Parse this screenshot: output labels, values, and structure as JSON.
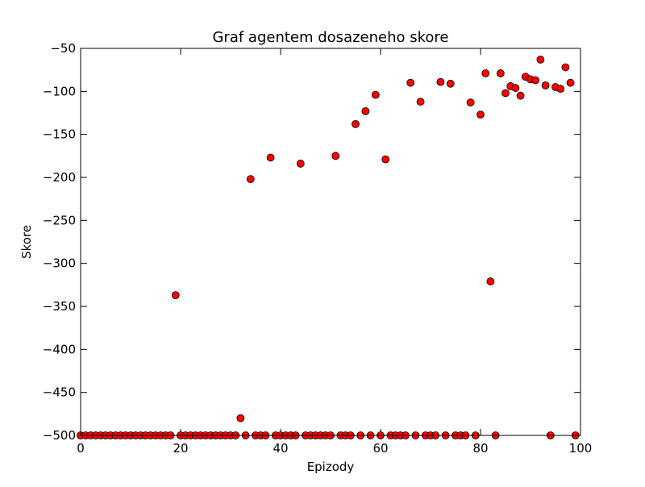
{
  "chart_data": {
    "type": "scatter",
    "title": "Graf agentem dosazeneho skore",
    "xlabel": "Epizody",
    "ylabel": "Skore",
    "xlim": [
      0,
      100
    ],
    "ylim": [
      -500,
      -50
    ],
    "x_ticks": [
      0,
      20,
      40,
      60,
      80,
      100
    ],
    "y_ticks": [
      -500,
      -450,
      -400,
      -350,
      -300,
      -250,
      -200,
      -150,
      -100,
      -50
    ],
    "x_tick_labels": [
      "0",
      "20",
      "40",
      "60",
      "80",
      "100"
    ],
    "y_tick_labels": [
      "−500",
      "−450",
      "−400",
      "−350",
      "−300",
      "−250",
      "−200",
      "−150",
      "−100",
      "−50"
    ],
    "grid": false,
    "legend": false,
    "marker_color": "#ff0000",
    "marker_edge_color": "#000000",
    "points": [
      {
        "x": 0,
        "y": -500
      },
      {
        "x": 1,
        "y": -500
      },
      {
        "x": 2,
        "y": -500
      },
      {
        "x": 3,
        "y": -500
      },
      {
        "x": 4,
        "y": -500
      },
      {
        "x": 5,
        "y": -500
      },
      {
        "x": 6,
        "y": -500
      },
      {
        "x": 7,
        "y": -500
      },
      {
        "x": 8,
        "y": -500
      },
      {
        "x": 9,
        "y": -500
      },
      {
        "x": 10,
        "y": -500
      },
      {
        "x": 11,
        "y": -500
      },
      {
        "x": 12,
        "y": -500
      },
      {
        "x": 13,
        "y": -500
      },
      {
        "x": 14,
        "y": -500
      },
      {
        "x": 15,
        "y": -500
      },
      {
        "x": 16,
        "y": -500
      },
      {
        "x": 17,
        "y": -500
      },
      {
        "x": 18,
        "y": -500
      },
      {
        "x": 19,
        "y": -337
      },
      {
        "x": 20,
        "y": -500
      },
      {
        "x": 21,
        "y": -500
      },
      {
        "x": 22,
        "y": -500
      },
      {
        "x": 23,
        "y": -500
      },
      {
        "x": 24,
        "y": -500
      },
      {
        "x": 25,
        "y": -500
      },
      {
        "x": 26,
        "y": -500
      },
      {
        "x": 27,
        "y": -500
      },
      {
        "x": 28,
        "y": -500
      },
      {
        "x": 29,
        "y": -500
      },
      {
        "x": 30,
        "y": -500
      },
      {
        "x": 31,
        "y": -500
      },
      {
        "x": 32,
        "y": -480
      },
      {
        "x": 33,
        "y": -500
      },
      {
        "x": 34,
        "y": -202
      },
      {
        "x": 35,
        "y": -500
      },
      {
        "x": 36,
        "y": -500
      },
      {
        "x": 37,
        "y": -500
      },
      {
        "x": 38,
        "y": -177
      },
      {
        "x": 39,
        "y": -500
      },
      {
        "x": 40,
        "y": -500
      },
      {
        "x": 41,
        "y": -500
      },
      {
        "x": 42,
        "y": -500
      },
      {
        "x": 43,
        "y": -500
      },
      {
        "x": 44,
        "y": -184
      },
      {
        "x": 45,
        "y": -500
      },
      {
        "x": 46,
        "y": -500
      },
      {
        "x": 47,
        "y": -500
      },
      {
        "x": 48,
        "y": -500
      },
      {
        "x": 49,
        "y": -500
      },
      {
        "x": 50,
        "y": -500
      },
      {
        "x": 51,
        "y": -175
      },
      {
        "x": 52,
        "y": -500
      },
      {
        "x": 53,
        "y": -500
      },
      {
        "x": 54,
        "y": -500
      },
      {
        "x": 55,
        "y": -138
      },
      {
        "x": 56,
        "y": -500
      },
      {
        "x": 57,
        "y": -123
      },
      {
        "x": 58,
        "y": -500
      },
      {
        "x": 59,
        "y": -104
      },
      {
        "x": 60,
        "y": -500
      },
      {
        "x": 61,
        "y": -179
      },
      {
        "x": 62,
        "y": -500
      },
      {
        "x": 63,
        "y": -500
      },
      {
        "x": 64,
        "y": -500
      },
      {
        "x": 65,
        "y": -500
      },
      {
        "x": 66,
        "y": -90
      },
      {
        "x": 67,
        "y": -500
      },
      {
        "x": 68,
        "y": -112
      },
      {
        "x": 69,
        "y": -500
      },
      {
        "x": 70,
        "y": -500
      },
      {
        "x": 71,
        "y": -500
      },
      {
        "x": 72,
        "y": -89
      },
      {
        "x": 73,
        "y": -500
      },
      {
        "x": 74,
        "y": -91
      },
      {
        "x": 75,
        "y": -500
      },
      {
        "x": 76,
        "y": -500
      },
      {
        "x": 77,
        "y": -500
      },
      {
        "x": 78,
        "y": -113
      },
      {
        "x": 79,
        "y": -500
      },
      {
        "x": 80,
        "y": -127
      },
      {
        "x": 81,
        "y": -79
      },
      {
        "x": 82,
        "y": -321
      },
      {
        "x": 83,
        "y": -500
      },
      {
        "x": 84,
        "y": -79
      },
      {
        "x": 85,
        "y": -102
      },
      {
        "x": 86,
        "y": -94
      },
      {
        "x": 87,
        "y": -96
      },
      {
        "x": 88,
        "y": -105
      },
      {
        "x": 89,
        "y": -83
      },
      {
        "x": 90,
        "y": -86
      },
      {
        "x": 91,
        "y": -87
      },
      {
        "x": 92,
        "y": -63
      },
      {
        "x": 93,
        "y": -93
      },
      {
        "x": 94,
        "y": -500
      },
      {
        "x": 95,
        "y": -95
      },
      {
        "x": 96,
        "y": -97
      },
      {
        "x": 97,
        "y": -72
      },
      {
        "x": 98,
        "y": -90
      },
      {
        "x": 99,
        "y": -500
      }
    ]
  }
}
